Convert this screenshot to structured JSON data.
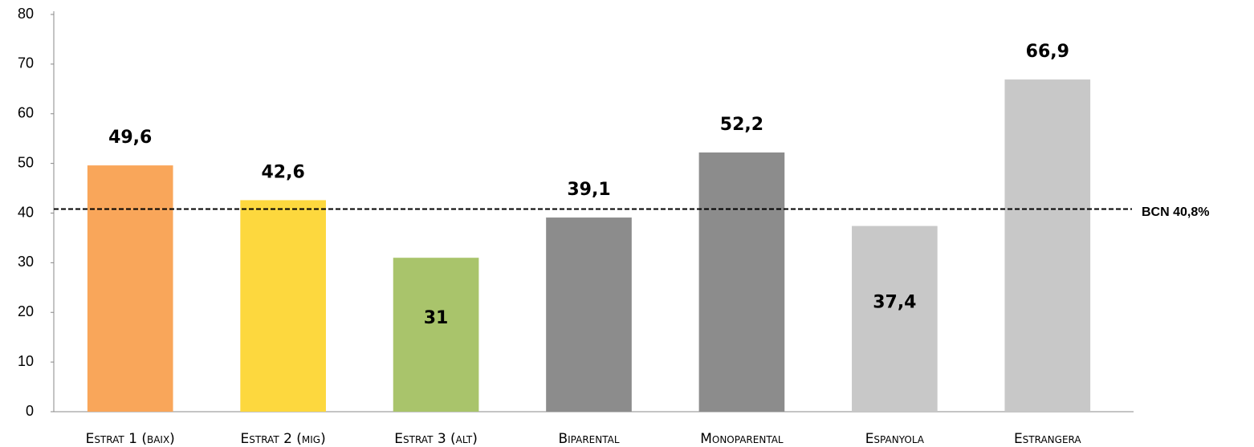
{
  "chart_data": {
    "type": "bar",
    "categories": [
      "Estrat 1 (baix)",
      "Estrat 2 (mig)",
      "Estrat 3 (alt)",
      "Biparental",
      "Monoparental",
      "Espanyola",
      "Estrangera"
    ],
    "values": [
      49.6,
      42.6,
      31,
      39.1,
      52.2,
      37.4,
      66.9
    ],
    "value_labels": [
      "49,6",
      "42,6",
      "31",
      "39,1",
      "52,2",
      "37,4",
      "66,9"
    ],
    "colors": [
      "#f9a65a",
      "#fdd83e",
      "#a9c46b",
      "#8c8c8c",
      "#8c8c8c",
      "#c8c8c8",
      "#c8c8c8"
    ],
    "ylim": [
      0,
      80
    ],
    "yticks": [
      0,
      10,
      20,
      30,
      40,
      50,
      60,
      70,
      80
    ],
    "grid": false,
    "reference_line": {
      "value": 40.8,
      "label": "BCN 40,8%"
    }
  }
}
